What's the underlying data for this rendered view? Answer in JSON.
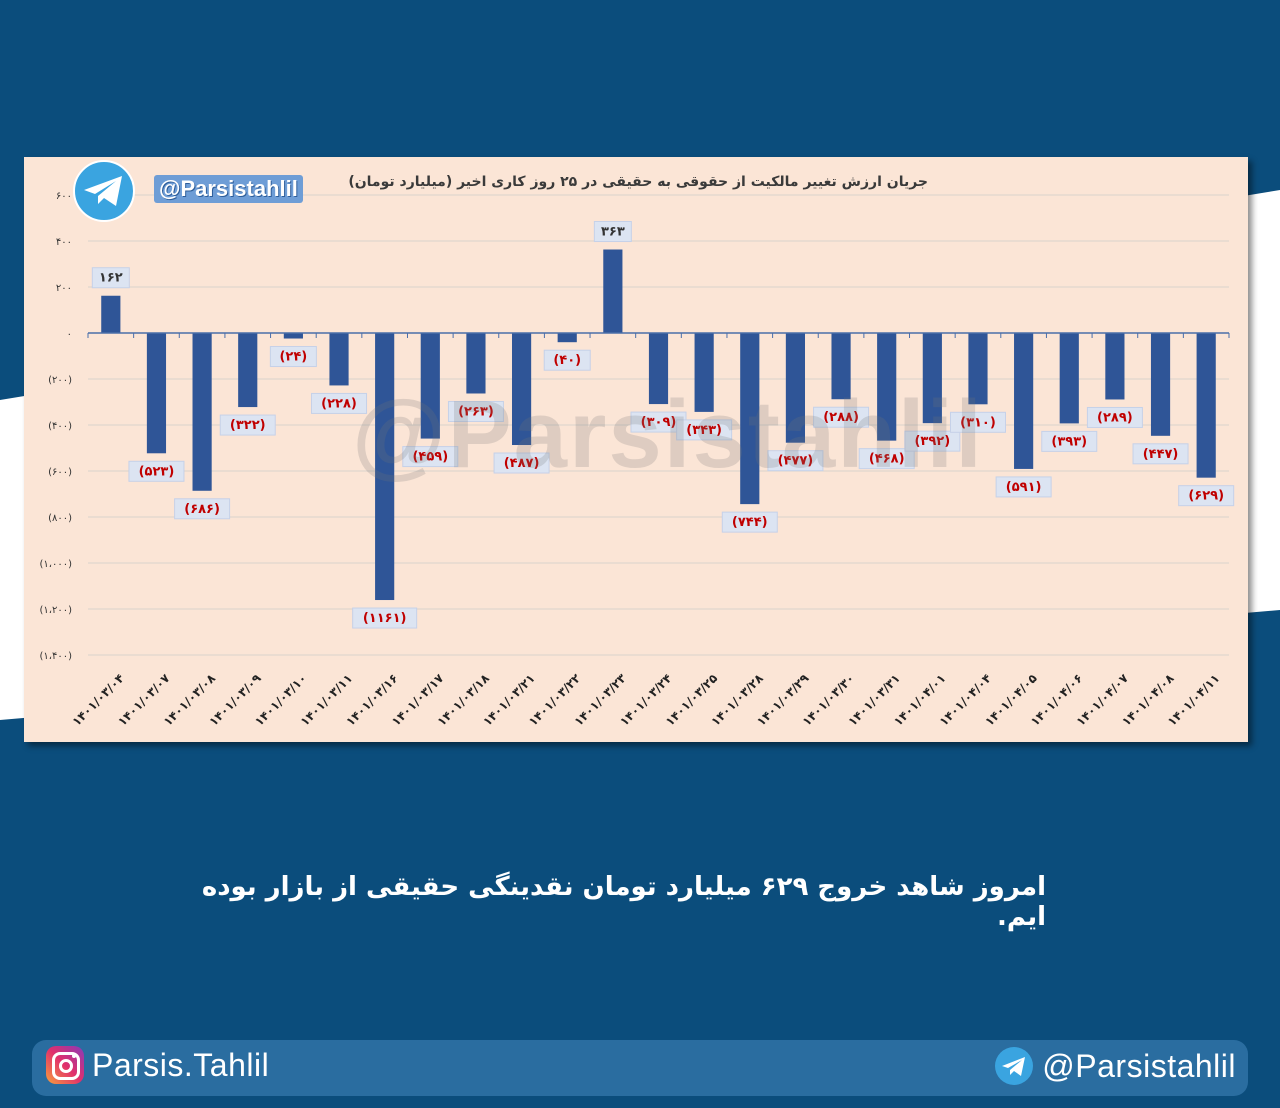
{
  "colors": {
    "background": "#0b4d7c",
    "card": "#fbe5d6",
    "bar": "#2f5597",
    "negative_label": "#c00000",
    "positive_label": "#333333"
  },
  "handle_badge": "@Parsistahlil",
  "watermark": "@Parsistahlil",
  "caption": "امروز شاهد خروج ۶۲۹ میلیارد تومان نقدینگی حقیقی از بازار بوده ایم.",
  "footer": {
    "instagram": "Parsis.Tahlil",
    "telegram": "@Parsistahlil",
    "instagram_icon": "instagram-icon",
    "telegram_icon": "telegram-icon"
  },
  "chart_data": {
    "type": "bar",
    "title": "جریان ارزش تغییر مالکیت از حقوقی به حقیقی در ۲۵ روز کاری اخیر (میلیارد تومان)",
    "xlabel": "",
    "ylabel": "",
    "ylim": [
      -1400,
      600
    ],
    "grid": true,
    "y_ticks": [
      600,
      400,
      200,
      0,
      -200,
      -400,
      -600,
      -800,
      -1000,
      -1200,
      -1400
    ],
    "y_tick_labels": [
      "۶۰۰",
      "۴۰۰",
      "۲۰۰",
      "۰",
      "(۲۰۰)",
      "(۴۰۰)",
      "(۶۰۰)",
      "(۸۰۰)",
      "(۱،۰۰۰)",
      "(۱،۲۰۰)",
      "(۱،۴۰۰)"
    ],
    "categories": [
      "۱۴۰۱/۰۳/۰۴",
      "۱۴۰۱/۰۳/۰۷",
      "۱۴۰۱/۰۳/۰۸",
      "۱۴۰۱/۰۳/۰۹",
      "۱۴۰۱/۰۳/۱۰",
      "۱۴۰۱/۰۳/۱۱",
      "۱۴۰۱/۰۳/۱۶",
      "۱۴۰۱/۰۳/۱۷",
      "۱۴۰۱/۰۳/۱۸",
      "۱۴۰۱/۰۳/۲۱",
      "۱۴۰۱/۰۳/۲۲",
      "۱۴۰۱/۰۳/۲۳",
      "۱۴۰۱/۰۳/۲۴",
      "۱۴۰۱/۰۳/۲۵",
      "۱۴۰۱/۰۳/۲۸",
      "۱۴۰۱/۰۳/۲۹",
      "۱۴۰۱/۰۳/۳۰",
      "۱۴۰۱/۰۳/۳۱",
      "۱۴۰۱/۰۴/۰۱",
      "۱۴۰۱/۰۴/۰۴",
      "۱۴۰۱/۰۴/۰۵",
      "۱۴۰۱/۰۴/۰۶",
      "۱۴۰۱/۰۴/۰۷",
      "۱۴۰۱/۰۴/۰۸",
      "۱۴۰۱/۰۴/۱۱"
    ],
    "values": [
      162,
      -523,
      -686,
      -322,
      -24,
      -228,
      -1161,
      -459,
      -263,
      -487,
      -40,
      363,
      -309,
      -343,
      -744,
      -477,
      -288,
      -468,
      -392,
      -310,
      -591,
      -393,
      -289,
      -447,
      -629
    ],
    "data_labels": [
      "۱۶۲",
      "(۵۲۳)",
      "(۶۸۶)",
      "(۳۲۲)",
      "(۲۴)",
      "(۲۲۸)",
      "(۱۱۶۱)",
      "(۴۵۹)",
      "(۲۶۳)",
      "(۴۸۷)",
      "(۴۰)",
      "۳۶۳",
      "(۳۰۹)",
      "(۳۴۳)",
      "(۷۴۴)",
      "(۴۷۷)",
      "(۲۸۸)",
      "(۴۶۸)",
      "(۳۹۲)",
      "(۳۱۰)",
      "(۵۹۱)",
      "(۳۹۳)",
      "(۲۸۹)",
      "(۴۴۷)",
      "(۶۲۹)"
    ]
  }
}
